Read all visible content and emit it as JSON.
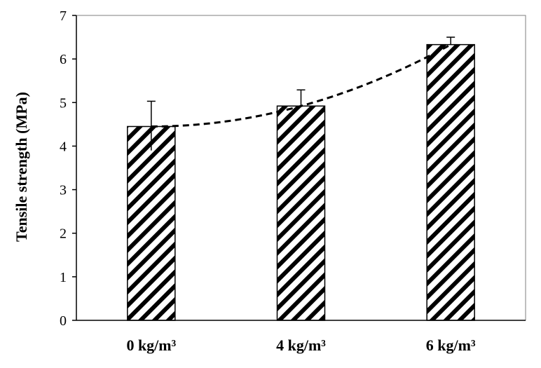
{
  "chart_data": {
    "type": "bar",
    "title": "",
    "xlabel": "",
    "ylabel": "Tensile strength (MPa)",
    "categories": [
      "0 kg/m³",
      "4 kg/m³",
      "6 kg/m³"
    ],
    "values": [
      4.45,
      4.92,
      6.33
    ],
    "error_plus": [
      0.58,
      0.37,
      0.17
    ],
    "error_minus": [
      0.55,
      0.0,
      0.0
    ],
    "ylim": [
      0,
      7
    ],
    "yticks": [
      0,
      1,
      2,
      3,
      4,
      5,
      6,
      7
    ],
    "trendline": {
      "style": "dashed",
      "type": "polynomial"
    },
    "bar_fill": "diagonal-hatch",
    "grid": false,
    "legend": "none",
    "colors": {
      "bar_stroke": "#000000",
      "hatch": "#000000",
      "background": "#ffffff"
    }
  }
}
